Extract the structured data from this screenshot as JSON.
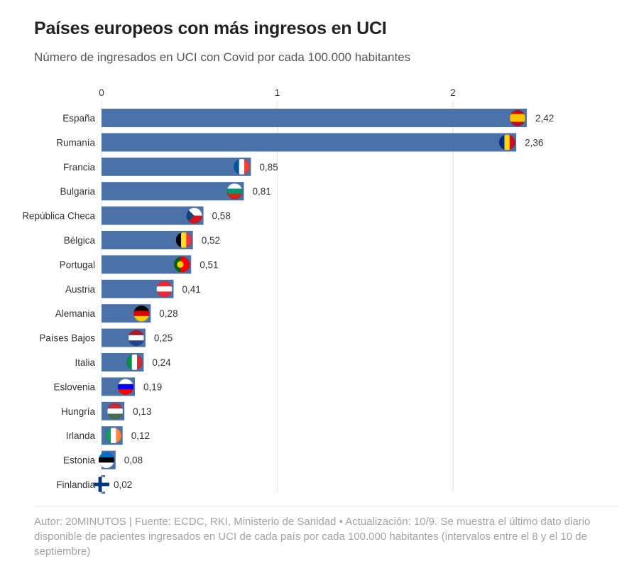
{
  "header": {
    "title": "Países europeos con más ingresos en UCI",
    "subtitle": "Número de ingresados en UCI con Covid por cada 100.000 habitantes"
  },
  "footer": {
    "text": "Autor: 20MINUTOS | Fuente: ECDC, RKI, Ministerio de Sanidad • Actualización: 10/9. Se muestra el último dato diario disponible de pacientes ingresados en UCI de cada país por cada 100.000 habitantes (intervalos entre el 8 y el 10 de septiembre)"
  },
  "colors": {
    "bar": "#4a71a8",
    "grid": "#e2e2e2"
  },
  "chart_data": {
    "type": "bar",
    "orientation": "horizontal",
    "categories": [
      "España",
      "Rumanía",
      "Francia",
      "Bulgaria",
      "República Checa",
      "Bélgica",
      "Portugal",
      "Austria",
      "Alemania",
      "Países Bajos",
      "Italia",
      "Eslovenia",
      "Hungría",
      "Irlanda",
      "Estonia",
      "Finlandia"
    ],
    "values": [
      2.42,
      2.36,
      0.85,
      0.81,
      0.58,
      0.52,
      0.51,
      0.41,
      0.28,
      0.25,
      0.24,
      0.19,
      0.13,
      0.12,
      0.08,
      0.02
    ],
    "value_labels": [
      "2,42",
      "2,36",
      "0,85",
      "0,81",
      "0,58",
      "0,52",
      "0,51",
      "0,41",
      "0,28",
      "0,25",
      "0,24",
      "0,19",
      "0,13",
      "0,12",
      "0,08",
      "0,02"
    ],
    "flags": [
      "flag-es",
      "flag-ro",
      "flag-fr",
      "flag-bg",
      "flag-cz",
      "flag-be",
      "flag-pt",
      "flag-at",
      "flag-de",
      "flag-nl",
      "flag-it",
      "flag-si",
      "flag-hu",
      "flag-ie",
      "flag-ee",
      "flag-fi"
    ],
    "xticks": [
      0,
      1,
      2
    ],
    "xtick_labels": [
      "0",
      "1",
      "2"
    ],
    "xlim": [
      0,
      2.92
    ],
    "xaxis_position": "top",
    "grid": true,
    "legend": "none"
  }
}
